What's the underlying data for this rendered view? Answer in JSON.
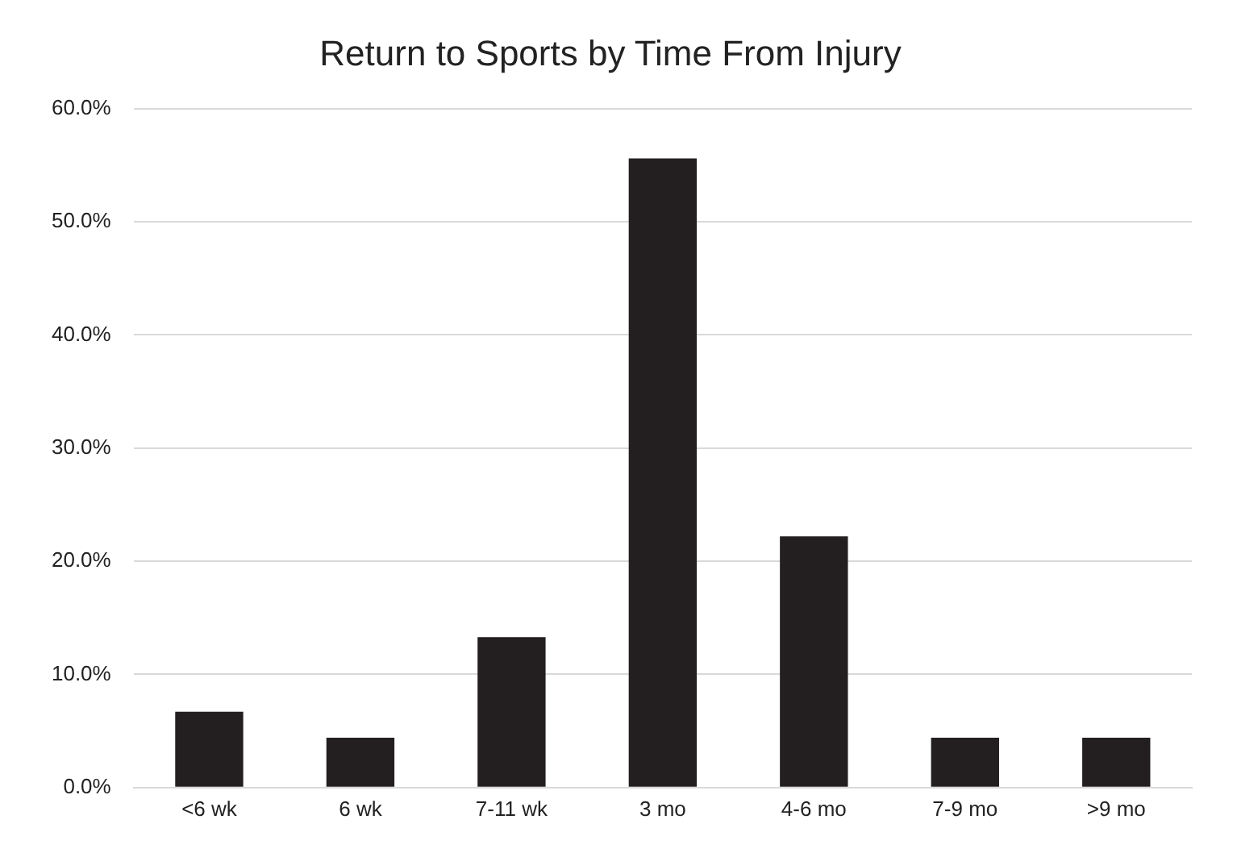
{
  "chart_data": {
    "type": "bar",
    "title": "Return to Sports by Time From Injury",
    "categories": [
      "<6 wk",
      "6 wk",
      "7-11 wk",
      "3 mo",
      "4-6 mo",
      "7-9 mo",
      ">9 mo"
    ],
    "values": [
      6.7,
      4.4,
      13.3,
      55.6,
      22.2,
      4.4,
      4.4
    ],
    "color": "#231f20",
    "ylim": [
      0,
      60
    ],
    "yticks": [
      {
        "value": 0,
        "label": "0.0%"
      },
      {
        "value": 10,
        "label": "10.0%"
      },
      {
        "value": 20,
        "label": "20.0%"
      },
      {
        "value": 30,
        "label": "30.0%"
      },
      {
        "value": 40,
        "label": "40.0%"
      },
      {
        "value": 50,
        "label": "50.0%"
      },
      {
        "value": 60,
        "label": "60.0%"
      }
    ],
    "grid": "y"
  }
}
